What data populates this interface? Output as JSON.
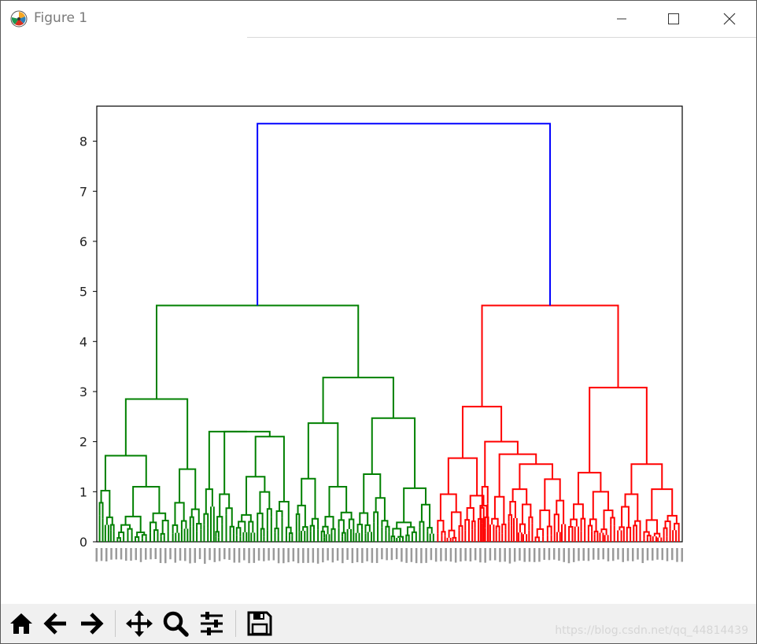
{
  "window": {
    "title": "Figure 1"
  },
  "toolbar": {
    "buttons": [
      "home-icon",
      "back-arrow-icon",
      "forward-arrow-icon",
      "pan-icon",
      "zoom-icon",
      "configure-subplots-icon",
      "save-icon"
    ]
  },
  "watermark": "https://blog.csdn.net/qq_44814439",
  "colors": {
    "cluster_a": "#008000",
    "cluster_b": "#ff0000",
    "root": "#0000ff"
  },
  "chart_data": {
    "type": "dendrogram",
    "ylim": [
      0,
      8.7
    ],
    "yticks": [
      0,
      1,
      2,
      3,
      4,
      5,
      6,
      7,
      8
    ],
    "grid": false,
    "leaf_count": 300,
    "links": [
      {
        "name": "root",
        "color": "#0000ff",
        "height": 8.35,
        "x": [
          0.292,
          0.802
        ]
      },
      {
        "name": "green-top",
        "color": "#008000",
        "height": 4.72,
        "x": [
          0.127,
          0.455
        ]
      },
      {
        "name": "red-top",
        "color": "#ff0000",
        "height": 4.72,
        "x": [
          0.675,
          0.928
        ]
      },
      {
        "name": "g-left",
        "color": "#008000",
        "height": 2.85,
        "x": [
          0.066,
          0.189
        ]
      },
      {
        "name": "g-right",
        "color": "#008000",
        "height": 3.28,
        "x": [
          0.4,
          0.51
        ]
      },
      {
        "name": "g-a",
        "color": "#008000",
        "height": 1.72,
        "x": [
          0.018,
          0.11
        ]
      },
      {
        "name": "g-b",
        "color": "#008000",
        "height": 2.2,
        "x": [
          0.153,
          0.222
        ]
      },
      {
        "name": "g-b2",
        "color": "#008000",
        "height": 2.1,
        "x": [
          0.181,
          0.27
        ]
      },
      {
        "name": "g-c",
        "color": "#008000",
        "height": 2.37,
        "x": [
          0.358,
          0.446
        ]
      },
      {
        "name": "g-d",
        "color": "#008000",
        "height": 2.47,
        "x": [
          0.473,
          0.538
        ]
      },
      {
        "name": "r-a",
        "color": "#ff0000",
        "height": 2.7,
        "x": [
          0.623,
          0.728
        ]
      },
      {
        "name": "r-b",
        "color": "#ff0000",
        "height": 3.08,
        "x": [
          0.893,
          0.965
        ]
      },
      {
        "name": "r-c",
        "color": "#ff0000",
        "height": 1.67,
        "x": [
          0.587,
          0.652
        ]
      },
      {
        "name": "r-d",
        "color": "#ff0000",
        "height": 2.0,
        "x": [
          0.695,
          0.753
        ]
      },
      {
        "name": "r-e",
        "color": "#ff0000",
        "height": 1.4,
        "x": [
          0.862,
          0.9
        ]
      },
      {
        "name": "r-f",
        "color": "#ff0000",
        "height": 1.55,
        "x": [
          0.95,
          0.985
        ]
      }
    ]
  }
}
